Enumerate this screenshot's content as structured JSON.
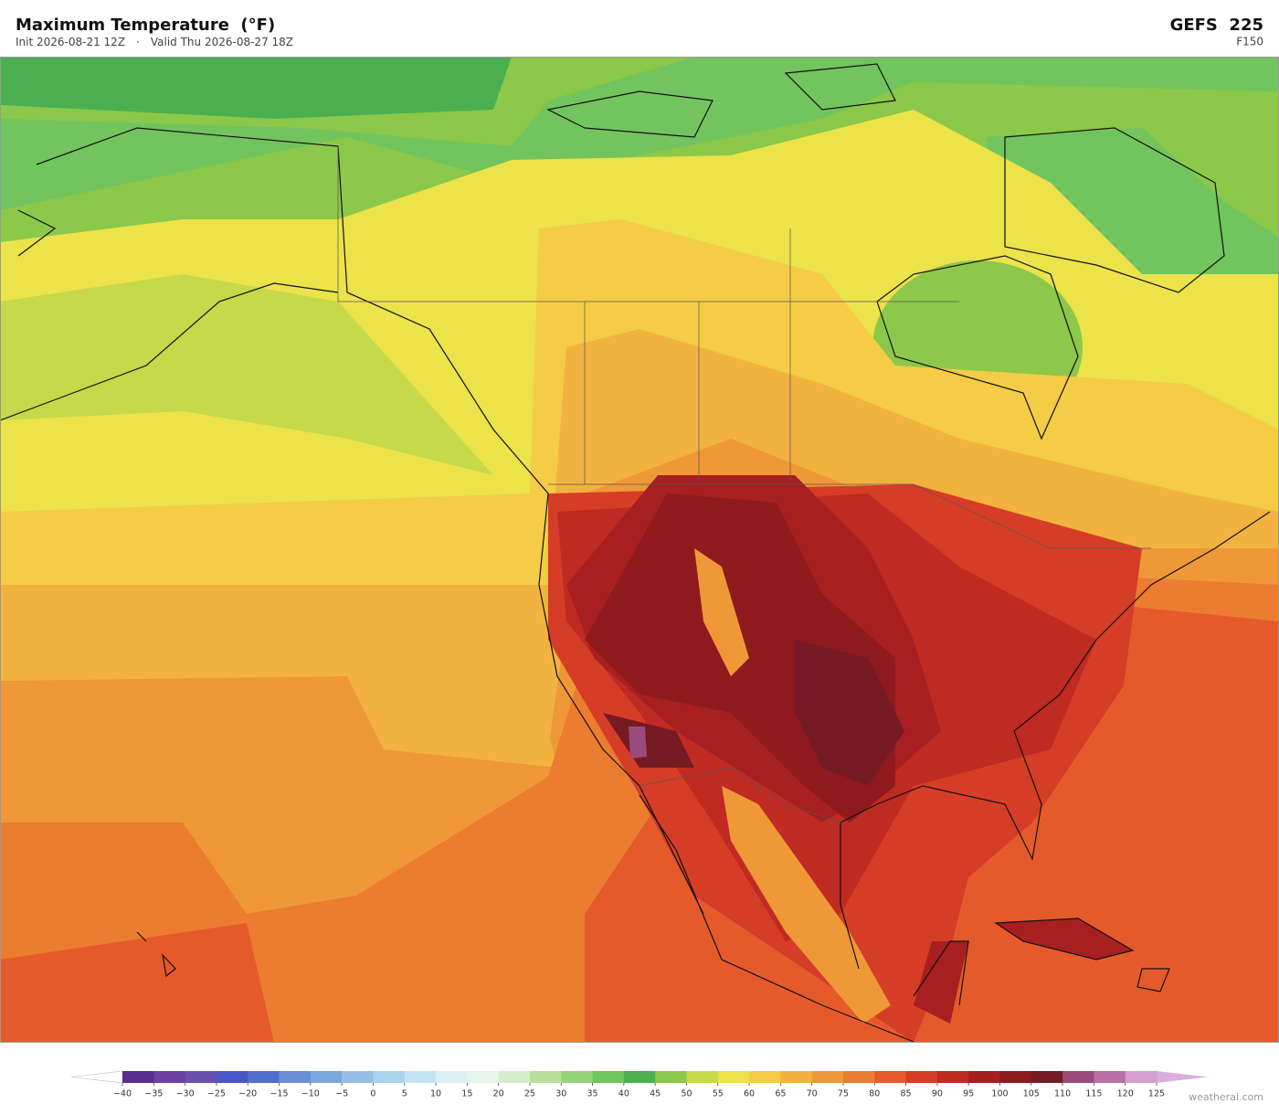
{
  "header": {
    "title": "Maximum Temperature  (°F)",
    "init": "Init 2026-08-21 12Z",
    "separator": "·",
    "valid": "Valid Thu 2026-08-27 18Z",
    "model": "GEFS  225",
    "forecast_hour": "F150"
  },
  "colorbar": {
    "ticks": [
      {
        "value": -40,
        "label": "−40"
      },
      {
        "value": -35,
        "label": "−35"
      },
      {
        "value": -30,
        "label": "−30"
      },
      {
        "value": -25,
        "label": "−25"
      },
      {
        "value": -20,
        "label": "−20"
      },
      {
        "value": -15,
        "label": "−15"
      },
      {
        "value": -10,
        "label": "−10"
      },
      {
        "value": -5,
        "label": "−5"
      },
      0,
      5,
      10,
      15,
      20,
      25,
      30,
      35,
      40,
      45,
      50,
      55,
      60,
      65,
      70,
      75,
      80,
      85,
      90,
      95,
      100,
      105,
      110,
      115,
      120,
      125
    ],
    "colors": [
      "#5a2d91",
      "#6c3fa0",
      "#6a4fb0",
      "#4a55c8",
      "#4f6fd0",
      "#6a90d8",
      "#7aa7de",
      "#96c0e6",
      "#a9d4ee",
      "#c4e3f2",
      "#ddf0f5",
      "#e8f5ec",
      "#d5edcc",
      "#b8e09a",
      "#98d47a",
      "#72c45e",
      "#4caf4f",
      "#8cc84a",
      "#c5d94a",
      "#ece24a",
      "#f4cc45",
      "#f2b23f",
      "#ef9838",
      "#ec7c30",
      "#e55a2b",
      "#d63d26",
      "#bf2a22",
      "#a71f20",
      "#8e1a1e",
      "#761a24",
      "#9a4a7a",
      "#b86fa6",
      "#d4a0d0"
    ],
    "under_color": "#ffffff",
    "over_color": "#dcaee0"
  },
  "watermark": "weatherai.com"
}
